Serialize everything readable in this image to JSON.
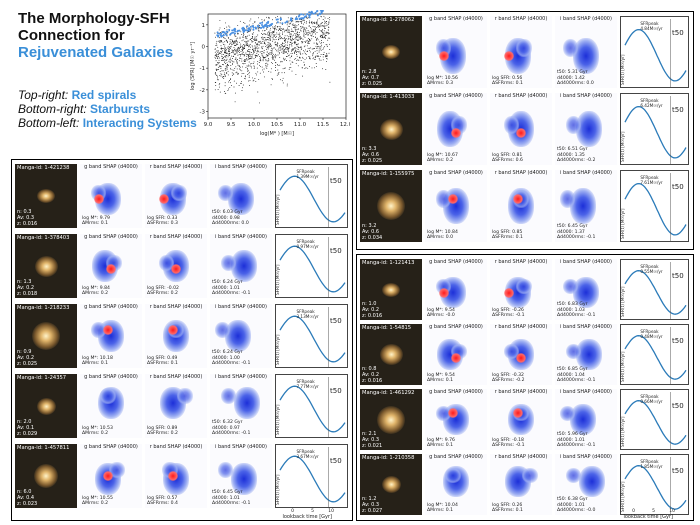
{
  "title": {
    "line1": "The Morphology-SFH",
    "line2": "Connection for",
    "line3": "Rejuvenated Galaxies"
  },
  "legend": [
    {
      "key": "Top-right:",
      "value": "Red spirals"
    },
    {
      "key": "Bottom-right:",
      "value": "Starbursts"
    },
    {
      "key": "Bottom-left:",
      "value": "Interacting Systems"
    }
  ],
  "scatter": {
    "xlabel": "log(M* ) [M☉]",
    "ylabel": "log (SFR) [M☉ yr⁻¹]",
    "xticks": [
      "9.0",
      "9.5",
      "10.0",
      "10.5",
      "11.0",
      "11.5",
      "12.0"
    ],
    "yticks": [
      "1",
      "0",
      "-1",
      "-2",
      "-3"
    ],
    "highlight_color": "#4a90e2"
  },
  "col_headers": {
    "g": "g band SHAP (d4000)",
    "r": "r band SHAP (d4000)",
    "i": "i band SHAP (d4000)"
  },
  "sfh": {
    "ylabel": "SFR(t) [M☉/yr]",
    "xlabel": "lookback time [Gyr]",
    "t50": "t50",
    "xticks": [
      "0",
      "5",
      "10"
    ]
  },
  "groups": {
    "left": [
      {
        "id": "Manga-id: 1-421238",
        "n": "n: 0.3",
        "av": "Av: 0.3",
        "z": "z: 0.016",
        "mass": "log M*: 9.79",
        "dm": "ΔMrms: 0.1",
        "sfr": "log SFR: 0.33",
        "dsfr": "ΔSFRrms: 0.3",
        "t50": "t50: 6.03 Gyr",
        "d4000": "d4000: 0.98",
        "dd4000": "Δd4000rms: 0.0",
        "peak": "SFRpeak",
        "peakval": "1.39M☉/yr"
      },
      {
        "id": "Manga-id: 1-378403",
        "n": "n: 1.3",
        "av": "Av: 0.2",
        "z": "z: 0.018",
        "mass": "log M*: 9.84",
        "dm": "ΔMrms: 0.2",
        "sfr": "log SFR: -0.02",
        "dsfr": "ΔSFRrms: 0.2",
        "t50": "t50: 6.24 Gyr",
        "d4000": "d4000: 1.01",
        "dd4000": "Δd4000rms: -0.1",
        "peak": "SFRpeak",
        "peakval": "0.97M☉/yr"
      },
      {
        "id": "Manga-id: 1-218233",
        "n": "n: 0.9",
        "av": "Av: 0.2",
        "z": "z: 0.025",
        "mass": "log M*: 10.18",
        "dm": "ΔMrms: 0.1",
        "sfr": "log SFR: 0.49",
        "dsfr": "ΔSFRrms: 0.1",
        "t50": "t50: 6.24 Gyr",
        "d4000": "d4000: 1.00",
        "dd4000": "Δd4000rms: -0.1",
        "peak": "SFRpeak",
        "peakval": "3.13M☉/yr"
      },
      {
        "id": "Manga-id: 1-24357",
        "n": "n: 2.0",
        "av": "Av: 0.1",
        "z": "z: 0.029",
        "mass": "log M*: 10.53",
        "dm": "ΔMrms: 0.2",
        "sfr": "log SFR: 0.89",
        "dsfr": "ΔSFRrms: 0.2",
        "t50": "t50: 6.32 Gyr",
        "d4000": "d4000: 0.97",
        "dd4000": "Δd4000rms: -0.1",
        "peak": "SFRpeak",
        "peakval": "7.77M☉/yr"
      },
      {
        "id": "Manga-id: 1-457811",
        "n": "n: 6.0",
        "av": "Av: 0.4",
        "z": "z: 0.023",
        "mass": "log M*: 10.55",
        "dm": "ΔMrms: 0.2",
        "sfr": "log SFR: 0.57",
        "dsfr": "ΔSFRrms: 0.4",
        "t50": "t50: 6.45 Gyr",
        "d4000": "d4000: 1.01",
        "dd4000": "Δd4000rms: -0.1",
        "peak": "SFRpeak",
        "peakval": "3.67M☉/yr"
      }
    ],
    "topright": [
      {
        "id": "Manga-id: 1-278062",
        "n": "n: 2.8",
        "av": "Av: 0.7",
        "z": "z: 0.025",
        "mass": "log M*: 10.56",
        "dm": "ΔMrms: 0.3",
        "sfr": "log SFR: 0.56",
        "dsfr": "ΔSFRrms: 0.1",
        "t50": "t50: 5.31 Gyr",
        "d4000": "d4000: 1.42",
        "dd4000": "Δd4000rms: 0.0",
        "peak": "SFRpeak",
        "peakval": "4.84M☉/yr"
      },
      {
        "id": "Manga-id: 1-413033",
        "n": "n: 3.3",
        "av": "Av: 0.6",
        "z": "z: 0.025",
        "mass": "log M*: 10.67",
        "dm": "ΔMrms: 0.2",
        "sfr": "log SFR: 0.81",
        "dsfr": "ΔSFRrms: 0.6",
        "t50": "t50: 6.51 Gyr",
        "d4000": "d4000: 1.35",
        "dd4000": "Δd4000rms: -0.2",
        "peak": "SFRpeak",
        "peakval": "6.42M☉/yr"
      },
      {
        "id": "Manga-id: 1-155975",
        "n": "n: 3.2",
        "av": "Av: 0.6",
        "z": "z: 0.034",
        "mass": "log M*: 10.84",
        "dm": "ΔMrms: 0.0",
        "sfr": "log SFR: 0.85",
        "dsfr": "ΔSFRrms: 0.1",
        "t50": "t50: 6.45 Gyr",
        "d4000": "d4000: 1.37",
        "dd4000": "Δd4000rms: -0.1",
        "peak": "SFRpeak",
        "peakval": "7.61M☉/yr"
      }
    ],
    "bottomright": [
      {
        "id": "Manga-id: 1-121413",
        "n": "n: 1.0",
        "av": "Av: 0.2",
        "z": "z: 0.016",
        "mass": "log M*: 9.54",
        "dm": "ΔMrms: -0.0",
        "sfr": "log SFR: -0.26",
        "dsfr": "ΔSFRrms: -0.1",
        "t50": "t50: 6.83 Gyr",
        "d4000": "d4000: 1.03",
        "dd4000": "Δd4000rms: -0.1",
        "peak": "SFRpeak",
        "peakval": "0.55M☉/yr"
      },
      {
        "id": "Manga-id: 1-54815",
        "n": "n: 0.8",
        "av": "Av: 0.2",
        "z": "z: 0.016",
        "mass": "log M*: 9.54",
        "dm": "ΔMrms: 0.1",
        "sfr": "log SFR: -0.32",
        "dsfr": "ΔSFRrms: -0.2",
        "t50": "t50: 6.85 Gyr",
        "d4000": "d4000: 1.04",
        "dd4000": "Δd4000rms: -0.1",
        "peak": "SFRpeak",
        "peakval": "0.48M☉/yr"
      },
      {
        "id": "Manga-id: 1-461292",
        "n": "n: 2.1",
        "av": "Av: 0.3",
        "z": "z: 0.021",
        "mass": "log M*: 9.76",
        "dm": "ΔMrms: 0.1",
        "sfr": "log SFR: -0.18",
        "dsfr": "ΔSFRrms: -0.1",
        "t50": "t50: 5.96 Gyr",
        "d4000": "d4000: 1.01",
        "dd4000": "Δd4000rms: -0.1",
        "peak": "SFRpeak",
        "peakval": "0.66M☉/yr"
      },
      {
        "id": "Manga-id: 1-210358",
        "n": "n: 1.2",
        "av": "Av: 0.3",
        "z": "z: 0.027",
        "mass": "log M*: 10.04",
        "dm": "ΔMrms: 0.1",
        "sfr": "log SFR: 0.26",
        "dsfr": "ΔSFRrms: 0.1",
        "t50": "t50: 6.38 Gyr",
        "d4000": "d4000: 1.01",
        "dd4000": "Δd4000rms: -0.0",
        "peak": "SFRpeak",
        "peakval": "1.85M☉/yr"
      }
    ]
  }
}
